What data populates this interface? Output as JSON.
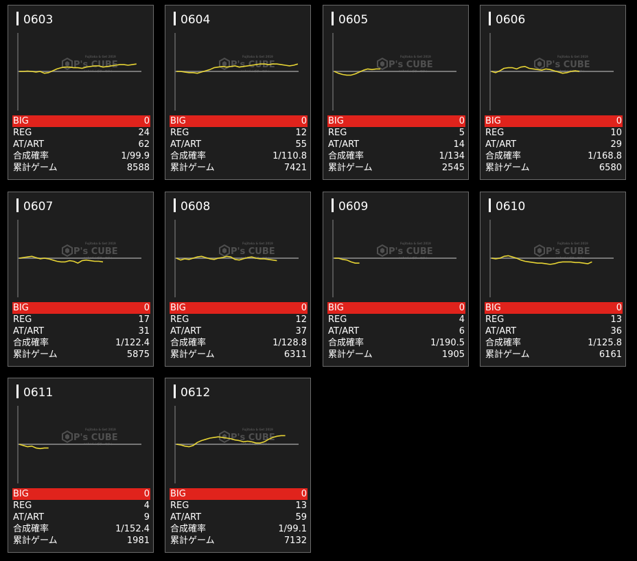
{
  "labels": {
    "big": "BIG",
    "reg": "REG",
    "at": "AT/ART",
    "prob": "合成確率",
    "games": "累計ゲーム"
  },
  "watermark": {
    "brand": "P's CUBE",
    "top": "Fujitaka & Get 2019",
    "bottom": "nobori / ゴサーマナト",
    "icon": "cube-logo-icon"
  },
  "colors": {
    "line": "#e8d534",
    "big_bar": "#e0231c",
    "baseline": "#777777"
  },
  "machines": [
    {
      "id": "0603",
      "big": "0",
      "reg": "24",
      "at": "62",
      "prob": "1/99.9",
      "games": "8588",
      "series": [
        0,
        0,
        0.5,
        0,
        -1,
        0,
        -3,
        -2,
        1,
        4,
        6,
        7,
        7,
        6,
        6,
        5,
        7,
        8,
        9,
        9,
        7,
        8,
        9,
        10,
        11,
        11,
        10,
        11,
        12
      ]
    },
    {
      "id": "0604",
      "big": "0",
      "reg": "12",
      "at": "55",
      "prob": "1/110.8",
      "games": "7421",
      "series": [
        0,
        0,
        -1,
        -2,
        -2,
        -3,
        -1,
        1,
        3,
        6,
        7,
        8,
        7,
        8,
        9,
        7,
        8,
        9,
        10,
        11,
        12,
        12,
        11,
        12,
        12,
        11,
        10,
        9,
        10,
        12
      ]
    },
    {
      "id": "0605",
      "big": "0",
      "reg": "5",
      "at": "14",
      "prob": "1/134",
      "games": "2545",
      "series": [
        0,
        -3,
        -5,
        -6,
        -6,
        -4,
        -1,
        2,
        4,
        3,
        4,
        4
      ]
    },
    {
      "id": "0606",
      "big": "0",
      "reg": "10",
      "at": "29",
      "prob": "1/168.8",
      "games": "6580",
      "series": [
        0,
        -2,
        1,
        5,
        6,
        6,
        4,
        7,
        8,
        5,
        4,
        3,
        2,
        4,
        3,
        1,
        -1,
        -3,
        -2,
        0,
        1,
        0
      ]
    },
    {
      "id": "0607",
      "big": "0",
      "reg": "17",
      "at": "31",
      "prob": "1/122.4",
      "games": "5875",
      "series": [
        0,
        1,
        2,
        3,
        1,
        -1,
        0,
        -1,
        -3,
        -5,
        -6,
        -6,
        -4,
        -5,
        -8,
        -4,
        -3,
        -4,
        -5,
        -5,
        -6
      ]
    },
    {
      "id": "0608",
      "big": "0",
      "reg": "12",
      "at": "37",
      "prob": "1/128.8",
      "games": "6311",
      "series": [
        0,
        -3,
        -1,
        -2,
        0,
        2,
        3,
        1,
        -1,
        -2,
        0,
        1,
        3,
        2,
        -2,
        -3,
        -1,
        1,
        2,
        0,
        -1,
        -1,
        -2,
        -3,
        -4
      ]
    },
    {
      "id": "0609",
      "big": "0",
      "reg": "4",
      "at": "6",
      "prob": "1/190.5",
      "games": "1905",
      "series": [
        0,
        0,
        -2,
        -3,
        -6,
        -8,
        -8
      ]
    },
    {
      "id": "0610",
      "big": "0",
      "reg": "13",
      "at": "36",
      "prob": "1/125.8",
      "games": "6161",
      "series": [
        0,
        -1,
        0,
        3,
        4,
        2,
        0,
        -3,
        -5,
        -6,
        -7,
        -8,
        -8,
        -9,
        -10,
        -9,
        -7,
        -6,
        -6,
        -6,
        -7,
        -7,
        -8,
        -9,
        -6
      ]
    },
    {
      "id": "0611",
      "big": "0",
      "reg": "4",
      "at": "9",
      "prob": "1/152.4",
      "games": "1981",
      "series": [
        0,
        -2,
        -4,
        -3,
        -6,
        -7,
        -6,
        -6
      ]
    },
    {
      "id": "0612",
      "big": "0",
      "reg": "13",
      "at": "59",
      "prob": "1/99.1",
      "games": "7132",
      "series": [
        0,
        -1,
        -3,
        -4,
        -2,
        3,
        6,
        8,
        10,
        11,
        12,
        11,
        10,
        9,
        7,
        6,
        4,
        5,
        4,
        2,
        2,
        4,
        8,
        11,
        13,
        14,
        14
      ]
    }
  ]
}
